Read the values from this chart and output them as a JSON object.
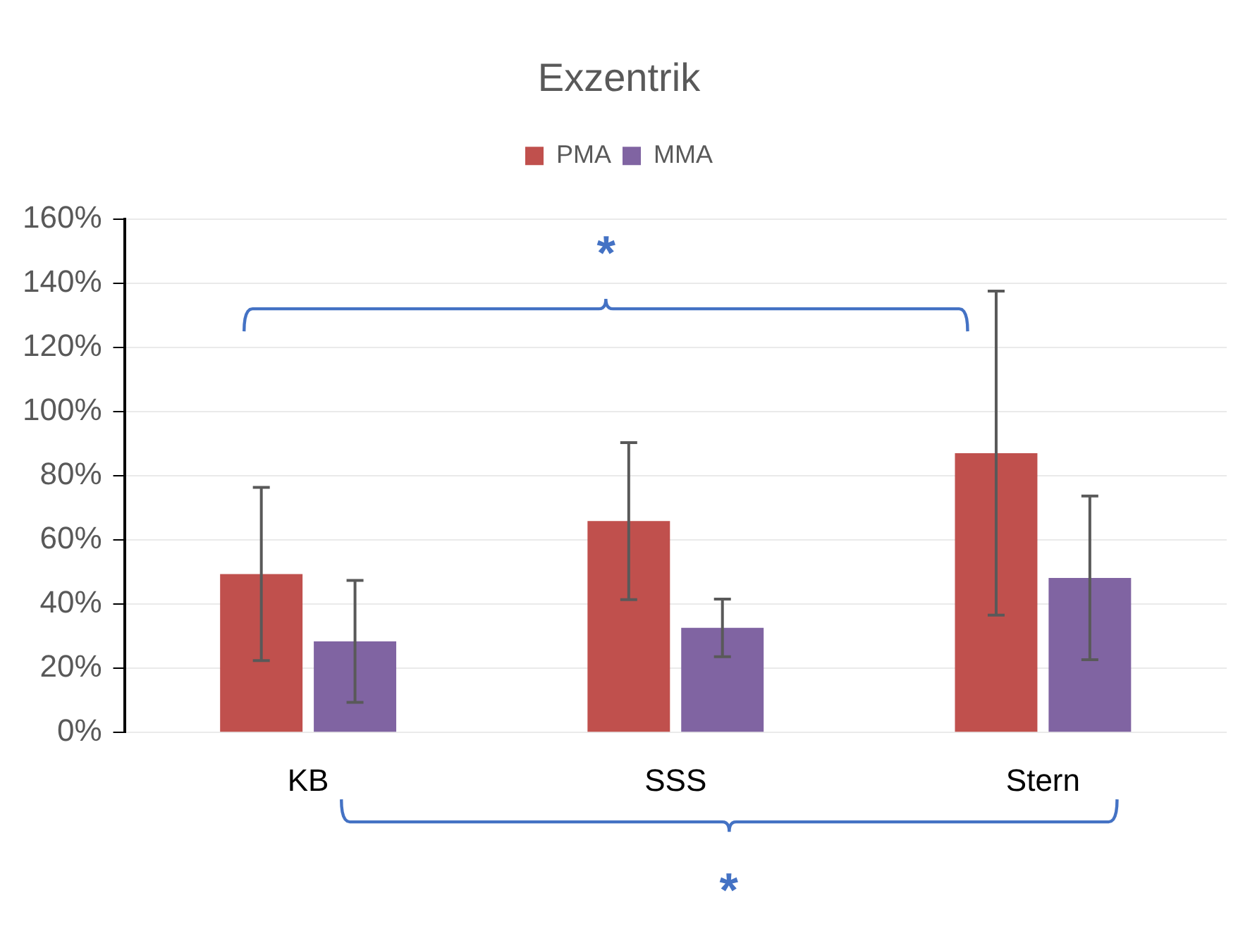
{
  "chart_data": {
    "type": "bar",
    "title": "Exzentrik",
    "categories": [
      "KB",
      "SSS",
      "Stern"
    ],
    "series": [
      {
        "name": "PMA",
        "color": "#c0504d",
        "values": [
          49.4,
          65.9,
          87.1
        ],
        "errors": [
          27,
          24.5,
          50.5
        ]
      },
      {
        "name": "MMA",
        "color": "#8064a2",
        "values": [
          28.4,
          32.6,
          48.2
        ],
        "errors": [
          19,
          9,
          25.5
        ]
      }
    ],
    "ylim": [
      0,
      160
    ],
    "yticks": [
      {
        "value": 0,
        "label": "0%"
      },
      {
        "value": 20,
        "label": "20%"
      },
      {
        "value": 40,
        "label": "40%"
      },
      {
        "value": 60,
        "label": "60%"
      },
      {
        "value": 80,
        "label": "80%"
      },
      {
        "value": 100,
        "label": "100%"
      },
      {
        "value": 120,
        "label": "120%"
      },
      {
        "value": 140,
        "label": "140%"
      },
      {
        "value": 160,
        "label": "160%"
      }
    ],
    "grid": "y",
    "legend": "top",
    "annotations": [
      "*",
      "*"
    ]
  }
}
